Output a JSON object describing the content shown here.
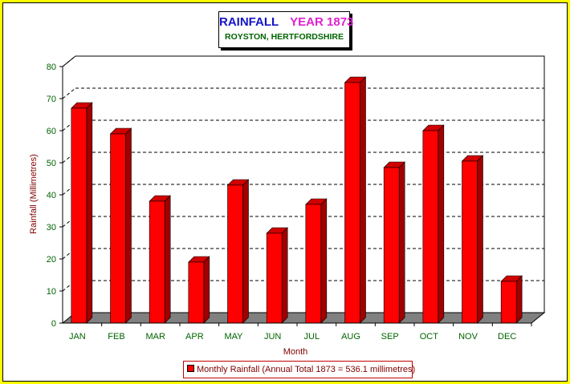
{
  "chart_data": {
    "type": "bar",
    "title": "RAINFALL",
    "title_year": "YEAR 1873",
    "subtitle": "ROYSTON, HERTFORDSHIRE",
    "xlabel": "Month",
    "ylabel": "Rainfall (Millimetres)",
    "ylim": [
      0,
      80
    ],
    "yticks": [
      0,
      10,
      20,
      30,
      40,
      50,
      60,
      70,
      80
    ],
    "grid": true,
    "legend_position": "bottom",
    "categories": [
      "JAN",
      "FEB",
      "MAR",
      "APR",
      "MAY",
      "JUN",
      "JUL",
      "AUG",
      "SEP",
      "OCT",
      "NOV",
      "DEC"
    ],
    "series": [
      {
        "name": "Monthly Rainfall (Annual Total 1873 = 536.1 millimetres)",
        "values": [
          67,
          59,
          38,
          19,
          43,
          28,
          37,
          75,
          48.5,
          60,
          50.5,
          13
        ],
        "color": "#ff0000"
      }
    ]
  },
  "colors": {
    "background": "#ffff00",
    "bar_front": "#ff0000",
    "bar_side": "#a00000",
    "bar_top": "#d00000",
    "floor": "#808080"
  }
}
